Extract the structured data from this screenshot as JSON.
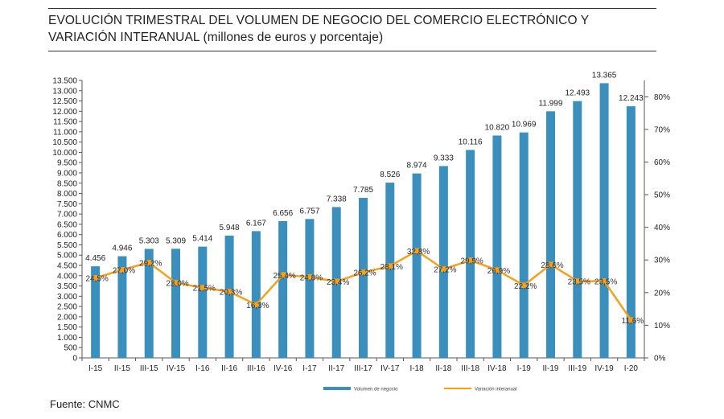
{
  "title": {
    "main": "EVOLUCIÓN TRIMESTRAL DEL VOLUMEN DE NEGOCIO DEL COMERCIO ELECTRÓNICO Y VARIACIÓN INTERANUAL",
    "sub": "(millones de euros y porcentaje)"
  },
  "source": "Fuente: CNMC",
  "chart_data": {
    "type": "bar",
    "categories": [
      "I-15",
      "II-15",
      "III-15",
      "IV-15",
      "I-16",
      "II-16",
      "III-16",
      "IV-16",
      "I-17",
      "II-17",
      "III-17",
      "IV-17",
      "I-18",
      "II-18",
      "III-18",
      "IV-18",
      "I-19",
      "II-19",
      "III-19",
      "IV-19",
      "I-20"
    ],
    "series": [
      {
        "name": "Volumen de negocio",
        "type": "bar",
        "axis": "left",
        "color": "#3a8fbd",
        "values": [
          4456,
          4946,
          5303,
          5309,
          5414,
          5948,
          6167,
          6656,
          6757,
          7338,
          7785,
          8526,
          8974,
          9333,
          10116,
          10820,
          10969,
          11999,
          12493,
          13365,
          12243
        ],
        "labels": [
          "4.456",
          "4.946",
          "5.303",
          "5.309",
          "5.414",
          "5.948",
          "6.167",
          "6.656",
          "6.757",
          "7.338",
          "7.785",
          "8.526",
          "8.974",
          "9.333",
          "10.116",
          "10.820",
          "10.969",
          "11.999",
          "12.493",
          "13.365",
          "12.243"
        ]
      },
      {
        "name": "Variación interanual",
        "type": "line",
        "axis": "right",
        "color": "#f5a01e",
        "values": [
          24.5,
          27.0,
          29.2,
          23.0,
          21.5,
          20.3,
          16.3,
          25.4,
          24.8,
          23.4,
          26.2,
          28.1,
          32.8,
          27.2,
          29.9,
          26.9,
          22.2,
          28.6,
          23.5,
          23.5,
          11.6
        ],
        "labels": [
          "24,5%",
          "27,0%",
          "29,2%",
          "23,0%",
          "21,5%",
          "20,3%",
          "16,3%",
          "25,4%",
          "24,8%",
          "23,4%",
          "26,2%",
          "28,1%",
          "32,8%",
          "27,2%",
          "29,9%",
          "26,9%",
          "22,2%",
          "28,6%",
          "23,5%",
          "23,5%",
          "11,6%"
        ]
      }
    ],
    "y_left": {
      "ylim": [
        0,
        13500
      ],
      "ticks": [
        0,
        500,
        1000,
        1500,
        2000,
        2500,
        3000,
        3500,
        4000,
        4500,
        5000,
        5500,
        6000,
        6500,
        7000,
        7500,
        8000,
        8500,
        9000,
        9500,
        10000,
        10500,
        11000,
        11500,
        12000,
        12500,
        13000,
        13500
      ],
      "tick_labels": [
        "0",
        "500",
        "1.000",
        "1.500",
        "2.000",
        "2.500",
        "3.000",
        "3.500",
        "4.000",
        "4.500",
        "5.000",
        "5.500",
        "6.000",
        "6.500",
        "7.000",
        "7.500",
        "8.000",
        "8.500",
        "9.000",
        "9.500",
        "10.000",
        "10.500",
        "11.000",
        "11.500",
        "12.000",
        "12.500",
        "13.000",
        "13.500"
      ]
    },
    "y_right": {
      "ylim": [
        0,
        85
      ],
      "ticks": [
        0,
        10,
        20,
        30,
        40,
        50,
        60,
        70,
        80
      ],
      "tick_labels": [
        "0%",
        "10%",
        "20%",
        "30%",
        "40%",
        "50%",
        "60%",
        "70%",
        "80%"
      ]
    },
    "legend": {
      "position": "bottom",
      "items": [
        "Volumen de negocio",
        "Variación interanual"
      ]
    }
  }
}
